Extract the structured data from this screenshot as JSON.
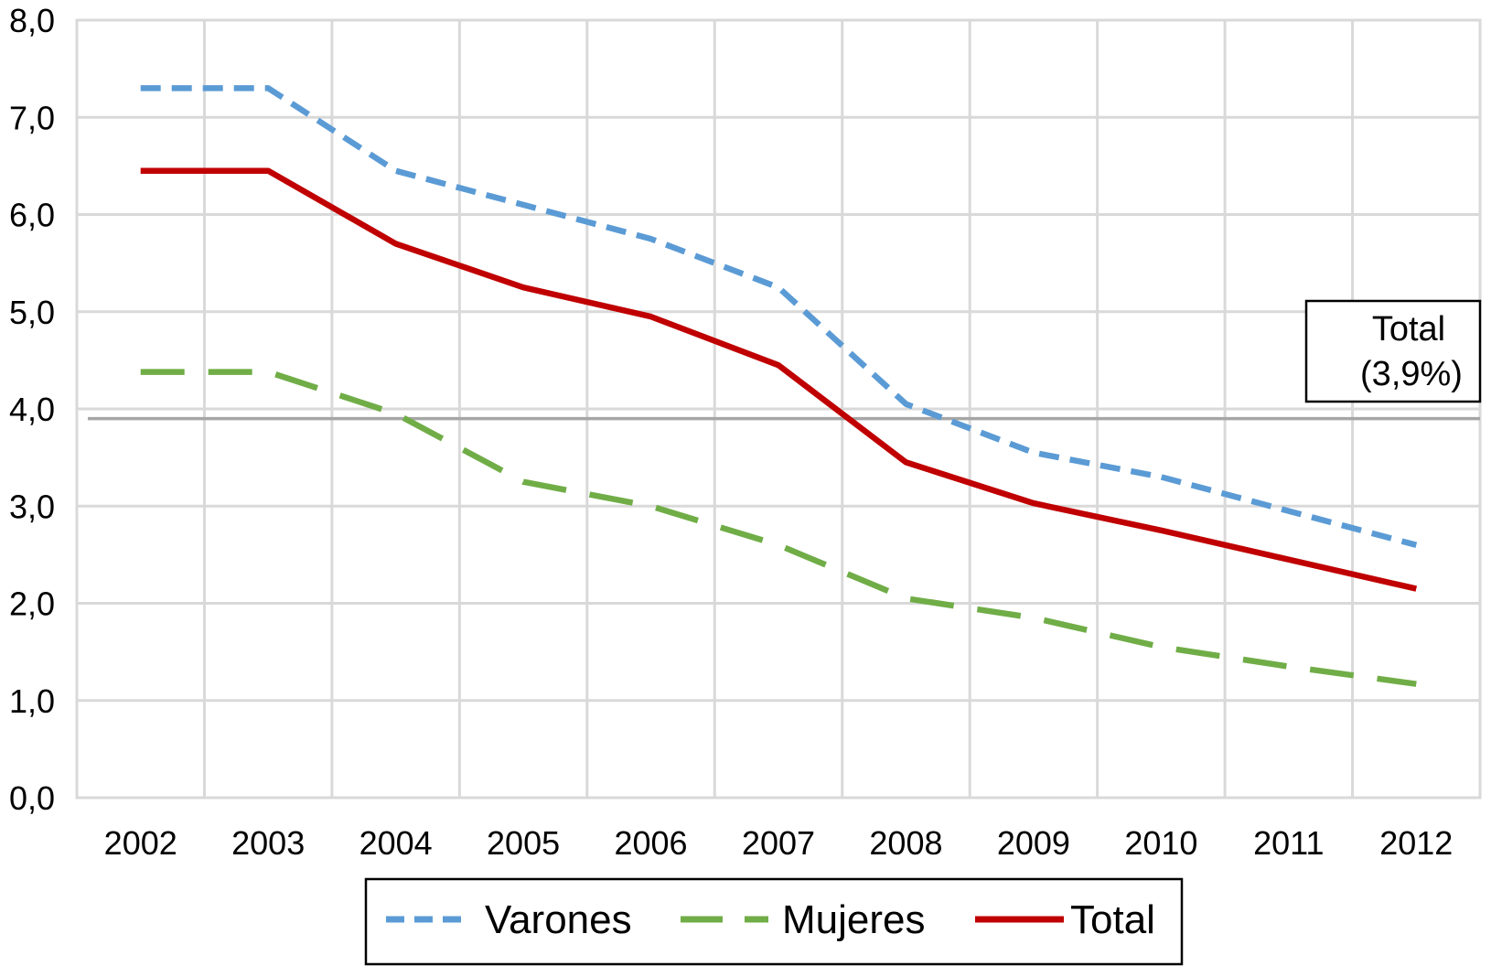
{
  "chart_data": {
    "type": "line",
    "title": "",
    "xlabel": "",
    "ylabel": "",
    "categories": [
      "2002",
      "2003",
      "2004",
      "2005",
      "2006",
      "2007",
      "2008",
      "2009",
      "2010",
      "2011",
      "2012"
    ],
    "ylim": [
      0,
      8
    ],
    "yticks": [
      "0,0",
      "1,0",
      "2,0",
      "3,0",
      "4,0",
      "5,0",
      "6,0",
      "7,0",
      "8,0"
    ],
    "grid": true,
    "legend_position": "bottom",
    "series": [
      {
        "name": "Varones",
        "color": "#5B9BD5",
        "style": "dashed",
        "values": [
          7.3,
          7.3,
          6.45,
          6.1,
          5.75,
          5.25,
          4.05,
          3.55,
          3.3,
          2.95,
          2.6
        ]
      },
      {
        "name": "Mujeres",
        "color": "#70AD47",
        "style": "long-dashed",
        "values": [
          4.38,
          4.38,
          3.95,
          3.25,
          3.0,
          2.6,
          2.05,
          1.85,
          1.55,
          1.35,
          1.17
        ]
      },
      {
        "name": "Total",
        "color": "#C00000",
        "style": "solid",
        "values": [
          6.45,
          6.45,
          5.7,
          5.25,
          4.95,
          4.45,
          3.45,
          3.03,
          2.75,
          2.45,
          2.15
        ]
      }
    ],
    "reference_line": {
      "value": 3.9,
      "color": "#A6A6A6",
      "label_line1": "Total",
      "label_line2": "(3,9%)"
    }
  }
}
